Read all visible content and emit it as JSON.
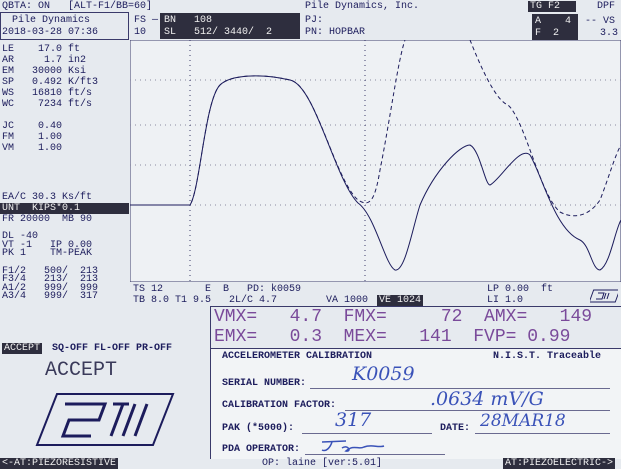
{
  "top_bar": {
    "left": "QBTA: ON   [ALT-F1/BB=60]",
    "center": "Pile Dynamics, Inc.",
    "tg": "TG F2",
    "right": "DPF"
  },
  "header": {
    "company": "Pile Dynamics",
    "datetime": "2018-03-28 07:36",
    "fs": "FS —",
    "fs_value": "10",
    "bn": "BN   108",
    "sl": "SL   512/ 3440/  2",
    "pj": "PJ:",
    "pn": "PN: HOPBAR",
    "a": "A    4",
    "f": "F  2",
    "vs": "-- VS",
    "vs_value": "3.3"
  },
  "params": [
    "LE    17.0 ft",
    "AR     1.7 in2",
    "EM   30000 Ksi",
    "SP   0.492 K/ft3",
    "WS   16810 ft/s",
    "WC    7234 ft/s",
    "",
    "JC    0.40",
    "FM    1.00",
    "VM    1.00"
  ],
  "eac": "EA/C 30.3 Ks/ft",
  "unit": "UNT  KIPS*0.1",
  "params2": [
    "FR 20000  MB 90",
    "",
    "DL -40",
    "VT -1   IP 0.00",
    "PK 1    TM-PEAK",
    "",
    "F1/2   500/  213",
    "F3/4   213/  213",
    "A1/2   999/  999",
    "A3/4   999/  317"
  ],
  "plot_footer": {
    "ts": "TS 12",
    "tb": "TB 8.0",
    "eb": "E  B   PD: k0059",
    "t1": "T1 9.5   2L/C 4.7",
    "va": "VA 1000",
    "ve": "VE 1024",
    "lp": "LP 0.00  ft",
    "li": "LI 1.0"
  },
  "readout": [
    "VMX=   4.7  FMX=     72  AMX=   149",
    "EMX=   0.3  MEX=   141  FVP= 0.99"
  ],
  "status": {
    "accept_button": "ACCEPT",
    "flags": "SQ-OFF FL-OFF PR-OFF"
  },
  "accept_label": "ACCEPT",
  "calibration": {
    "title": "ACCELEROMETER CALIBRATION",
    "traceable": "N.I.S.T. Traceable",
    "serial_label": "SERIAL NUMBER:",
    "serial": "K0059",
    "factor_label": "CALIBRATION FACTOR:",
    "factor": ".0634 mV/G",
    "pak_label": "PAK (*5000):",
    "pak": "317",
    "date_label": "DATE:",
    "date": "28MAR18",
    "operator_label": "PDA OPERATOR:"
  },
  "bottom_bar": {
    "left": "<-AT:PIEZORESISTIVE",
    "center": "OP: laine [ver:5.01]",
    "right": "AT:PIEZOELECTRIC->"
  }
}
